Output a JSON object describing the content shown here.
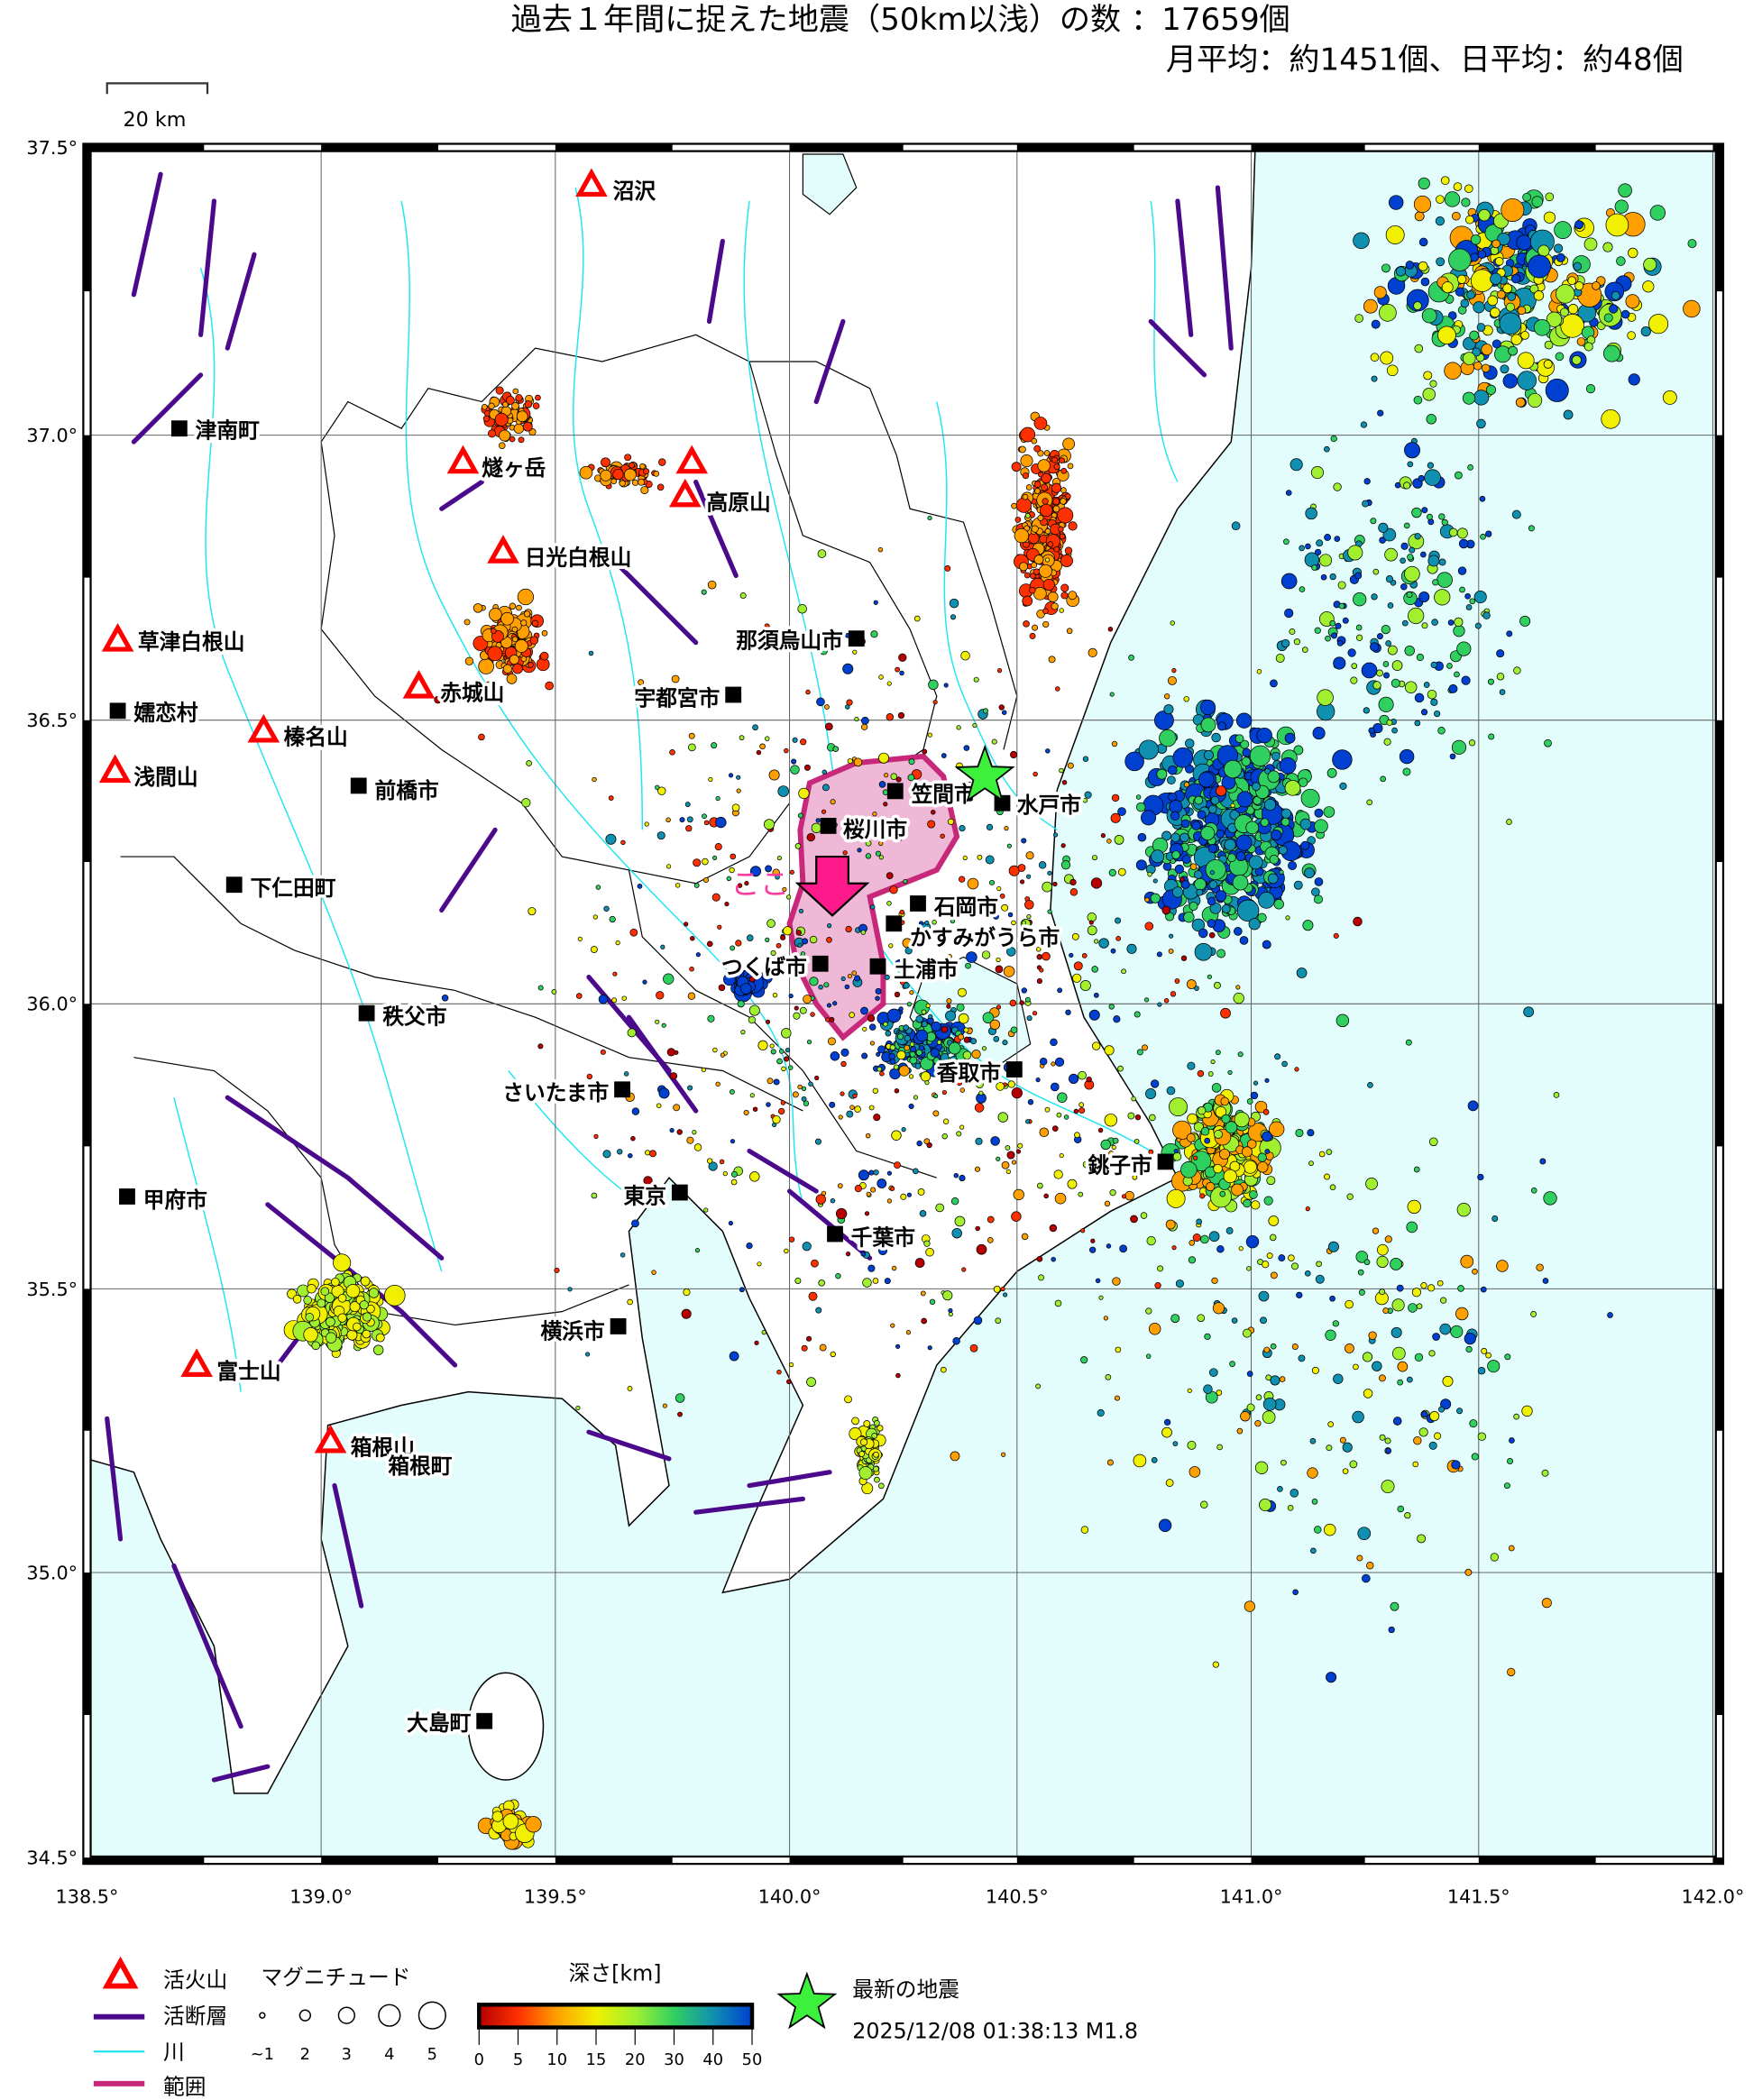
{
  "header": {
    "title": "過去１年間に捉えた地震（50km以浅）の数 ：17659個",
    "subtitle": "月平均：約1451個、日平均：約48個"
  },
  "scale_bar": {
    "label": "20 km"
  },
  "axes": {
    "lat_labels": [
      "37.5°",
      "37.0°",
      "36.5°",
      "36.0°",
      "35.5°",
      "35.0°",
      "34.5°"
    ],
    "lon_labels": [
      "138.5°",
      "139.0°",
      "139.5°",
      "140.0°",
      "140.5°",
      "141.0°",
      "141.5°",
      "142.0°"
    ]
  },
  "volcanoes": [
    "沼沢",
    "燧ヶ岳",
    "高原山",
    "日光白根山",
    "草津白根山",
    "赤城山",
    "榛名山",
    "浅間山",
    "富士山",
    "箱根山"
  ],
  "cities": [
    "津南町",
    "那須烏山市",
    "宇都宮市",
    "嬬恋村",
    "前橋市",
    "笠間市",
    "水戸市",
    "桜川市",
    "下仁田町",
    "石岡市",
    "かすみがうら市",
    "つくば市",
    "土浦市",
    "秩父市",
    "香取市",
    "さいたま市",
    "銚子市",
    "甲府市",
    "東京",
    "千葉市",
    "横浜市",
    "箱根町",
    "大島町"
  ],
  "here_marker": {
    "label": "ここ"
  },
  "legend": {
    "volcano": "活火山",
    "fault": "活断層",
    "river": "川",
    "range": "範囲",
    "magnitude_title": "マグニチュード",
    "magnitude_labels": [
      "~1",
      "2",
      "3",
      "4",
      "5"
    ],
    "depth_title": "深さ[km]",
    "depth_labels": [
      "0",
      "5",
      "10",
      "15",
      "20",
      "30",
      "40",
      "50"
    ],
    "latest_title": "最新の地震",
    "latest_value": "2025/12/08 01:38:13 M1.8"
  },
  "colors": {
    "sea": "#e3fdfd",
    "volcano": "#ff0000",
    "fault": "#4b0a8c",
    "river": "#22e6f0",
    "range_stroke": "#c8287a",
    "range_fill": "#efb8d6",
    "arrow": "#ff1a8c",
    "latest_star": "#3cf03c",
    "depth_scale": [
      "#b40000",
      "#ff3000",
      "#ffa000",
      "#f0f000",
      "#a0f030",
      "#30d060",
      "#1090b0",
      "#0040d0"
    ]
  }
}
